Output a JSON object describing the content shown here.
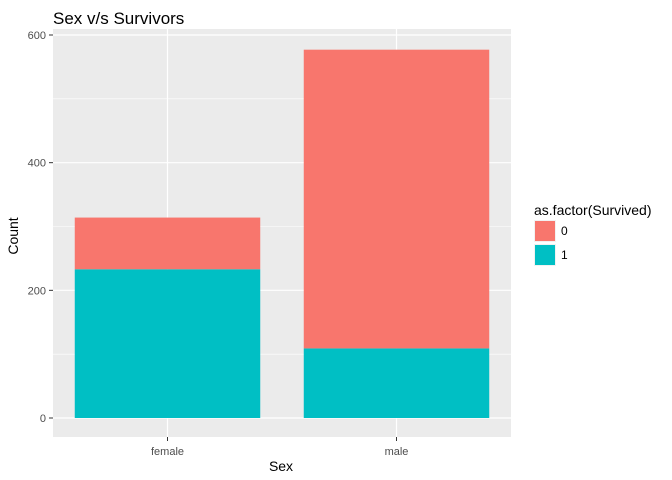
{
  "chart_data": {
    "type": "bar",
    "stacked": true,
    "title": "Sex v/s Survivors",
    "xlabel": "Sex",
    "ylabel": "Count",
    "categories": [
      "female",
      "male"
    ],
    "ylim": [
      0,
      600
    ],
    "yticks": [
      "0",
      "200",
      "400",
      "600"
    ],
    "grid": true,
    "legend_position": "right",
    "legend_title": "as.factor(Survived)",
    "series": [
      {
        "name": "1",
        "color": "#00BFC4",
        "values": [
          233,
          109
        ]
      },
      {
        "name": "0",
        "color": "#F8766D",
        "values": [
          81,
          468
        ]
      }
    ],
    "legend_order": [
      "0",
      "1"
    ]
  }
}
